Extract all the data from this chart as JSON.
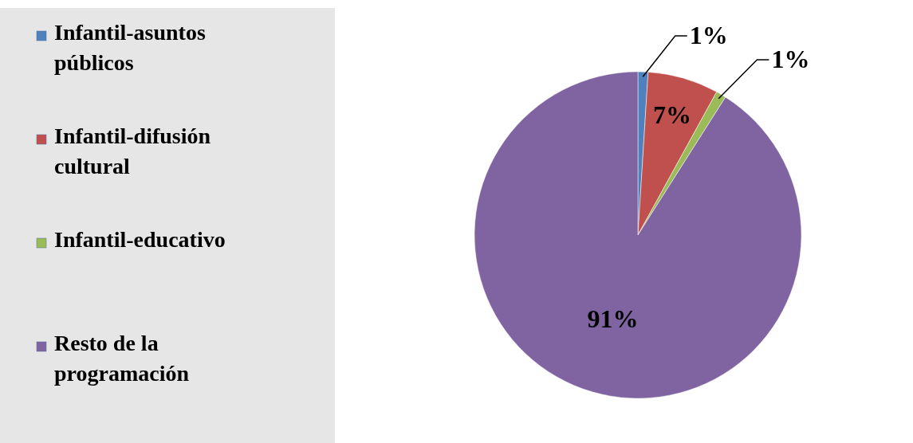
{
  "chart_data": {
    "type": "pie",
    "categories": [
      "Infantil-asuntos públicos",
      "Infantil-difusión cultural",
      "Infantil-educativo",
      "Resto de la programación"
    ],
    "values": [
      1,
      7,
      1,
      91
    ],
    "colors": [
      "#4f81bd",
      "#c0504d",
      "#9bbb59",
      "#8064a2"
    ],
    "value_labels": [
      "1%",
      "7%",
      "1%",
      "91%"
    ],
    "legend": "left"
  }
}
